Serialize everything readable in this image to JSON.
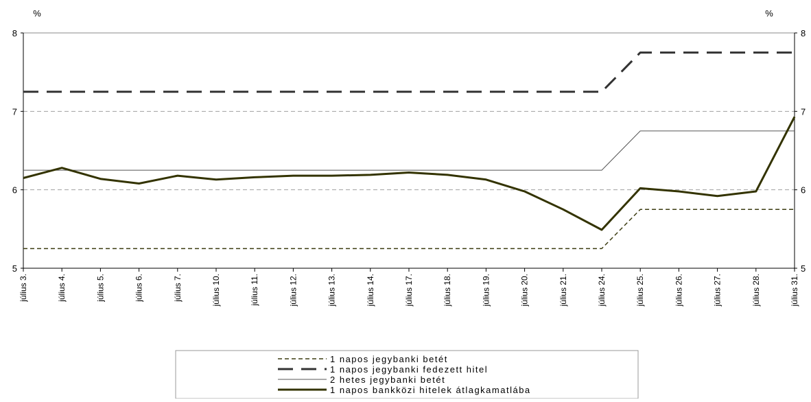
{
  "chart_data": {
    "type": "line",
    "title": "",
    "xlabel": "",
    "y_unit_left": "%",
    "y_unit_right": "%",
    "ylim": [
      5,
      8
    ],
    "yticks": [
      5,
      6,
      7,
      8
    ],
    "grid": "dashed horizontal at 6 and 7",
    "legend_position": "bottom-center",
    "categories": [
      "július 3.",
      "július 4.",
      "július 5.",
      "július 6.",
      "július 7.",
      "július 10.",
      "július 11.",
      "július 12.",
      "július 13.",
      "július 14.",
      "július 17.",
      "július 18.",
      "július 19.",
      "július 20.",
      "július 21.",
      "július 24.",
      "július 25.",
      "július 26.",
      "július 27.",
      "július 28.",
      "július 31."
    ],
    "series": [
      {
        "name": "1 napos jegybanki betét",
        "color": "#3b3b10",
        "dash": "dash-small",
        "values": [
          5.25,
          5.25,
          5.25,
          5.25,
          5.25,
          5.25,
          5.25,
          5.25,
          5.25,
          5.25,
          5.25,
          5.25,
          5.25,
          5.25,
          5.25,
          5.25,
          5.75,
          5.75,
          5.75,
          5.75,
          5.75
        ]
      },
      {
        "name": "1 napos jegybanki fedezett hitel",
        "color": "#333333",
        "dash": "dash-long",
        "values": [
          7.25,
          7.25,
          7.25,
          7.25,
          7.25,
          7.25,
          7.25,
          7.25,
          7.25,
          7.25,
          7.25,
          7.25,
          7.25,
          7.25,
          7.25,
          7.25,
          7.75,
          7.75,
          7.75,
          7.75,
          7.75
        ]
      },
      {
        "name": "2 hetes jegybanki betét",
        "color": "#555555",
        "dash": "solid-thin",
        "values": [
          6.25,
          6.25,
          6.25,
          6.25,
          6.25,
          6.25,
          6.25,
          6.25,
          6.25,
          6.25,
          6.25,
          6.25,
          6.25,
          6.25,
          6.25,
          6.25,
          6.75,
          6.75,
          6.75,
          6.75,
          6.75
        ]
      },
      {
        "name": "1 napos bankközi hitelek átlagkamatlába",
        "color": "#333300",
        "dash": "solid-thick",
        "values": [
          6.15,
          6.28,
          6.14,
          6.08,
          6.18,
          6.13,
          6.16,
          6.18,
          6.18,
          6.19,
          6.22,
          6.19,
          6.13,
          5.98,
          5.75,
          5.49,
          6.02,
          5.98,
          5.92,
          5.98,
          6.93
        ]
      }
    ]
  }
}
